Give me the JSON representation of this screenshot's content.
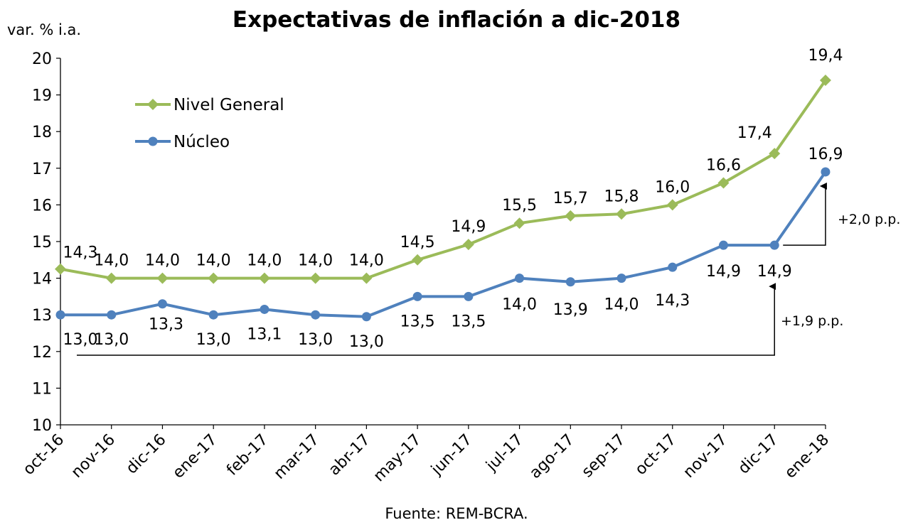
{
  "chart_data": {
    "type": "line",
    "title": "Expectativas de inflación a dic-2018",
    "ylabel": "var. % i.a.",
    "xlabel": "",
    "source": "Fuente: REM-BCRA.",
    "categories": [
      "oct-16",
      "nov-16",
      "dic-16",
      "ene-17",
      "feb-17",
      "mar-17",
      "abr-17",
      "may-17",
      "jun-17",
      "jul-17",
      "ago-17",
      "sep-17",
      "oct-17",
      "nov-17",
      "dic-17",
      "ene-18"
    ],
    "ylim": [
      10,
      20
    ],
    "yticks": [
      10,
      11,
      12,
      13,
      14,
      15,
      16,
      17,
      18,
      19,
      20
    ],
    "grid": false,
    "legend_position": "top-left",
    "series": [
      {
        "name": "Nivel General",
        "color": "#9BBB59",
        "marker": "diamond",
        "values": [
          14.25,
          14.0,
          14.0,
          14.0,
          14.0,
          14.0,
          14.0,
          14.5,
          14.92,
          15.5,
          15.7,
          15.75,
          16.0,
          16.6,
          17.4,
          19.4
        ],
        "labels": [
          "14,3",
          "14,0",
          "14,0",
          "14,0",
          "14,0",
          "14,0",
          "14,0",
          "14,5",
          "14,9",
          "15,5",
          "15,7",
          "15,8",
          "16,0",
          "16,6",
          "17,4",
          "19,4"
        ]
      },
      {
        "name": "Núcleo",
        "color": "#4F81BD",
        "marker": "circle",
        "values": [
          13.0,
          13.0,
          13.3,
          13.0,
          13.15,
          13.0,
          12.95,
          13.5,
          13.5,
          14.0,
          13.9,
          14.0,
          14.3,
          14.9,
          14.9,
          16.9
        ],
        "labels": [
          "13,0",
          "13,0",
          "13,3",
          "13,0",
          "13,1",
          "13,0",
          "13,0",
          "13,5",
          "13,5",
          "14,0",
          "13,9",
          "14,0",
          "14,3",
          "14,9",
          "14,9",
          "16,9"
        ]
      }
    ],
    "annotations": [
      {
        "text": "+2,0 p.p.",
        "from_value": 14.9,
        "to_value": 16.9,
        "from_index": 14,
        "to_index": 15
      },
      {
        "text": "+1,9 p.p.",
        "from_value": 13.0,
        "to_value": 14.9,
        "from_index": 0,
        "to_index": 14
      }
    ]
  }
}
